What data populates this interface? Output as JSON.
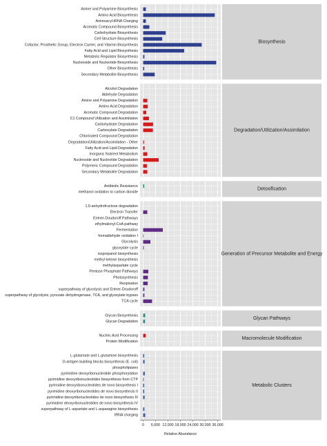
{
  "chart_data": [
    {
      "type": "bar",
      "title": "Biosynthesis",
      "color": "#2e3f8f",
      "categories": [
        "Amine and Polyamine Biosynthesis",
        "Amino Acid Biosynthesis",
        "Aminoacyl-tRNA Charging",
        "Aromatic Compound Biosynthesis",
        "Carbohydrate Biosynthesis",
        "Cell Structure Biosynthesis",
        "Cofactor, Prosthetic Group, Electron Carrier, and Vitamin Biosynthesis",
        "Fatty Acid and Lipid Biosynthesis",
        "Metabolic Regulator Biosynthesis",
        "Nucleoside and Nucleotide Biosynthesis",
        "Other Biosynthesis",
        "Secondary Metabolite Biosynthesis"
      ],
      "values": [
        1300,
        34600,
        1300,
        3000,
        10900,
        9200,
        28300,
        19800,
        600,
        35300,
        500,
        5600
      ],
      "xlim": [
        -1500,
        37500
      ],
      "xticks": [
        0,
        {
          "value": 6000,
          "label": "6,000"
        },
        {
          "value": 12000,
          "label": "12,000"
        },
        {
          "value": 18000,
          "label": "18,000"
        },
        {
          "value": 24000,
          "label": "24,000"
        },
        {
          "value": 30000,
          "label": "30,000"
        },
        {
          "value": 36000,
          "label": "36,000"
        }
      ]
    },
    {
      "type": "bar",
      "title": "Degradation/Utilization/Assimilation",
      "color": "#d7191c",
      "categories": [
        "Alcohol Degradation",
        "Aldehyde Degradation",
        "Amine and Polyamine Degradation",
        "Amino Acid Degradation",
        "Aromatic Compound Degradation",
        "C1 Compound Utilization and Assimilation",
        "Carbohydrate Degradation",
        "Carboxylate Degradation",
        "Chlorinated Compound Degradation",
        "Degradation/Utilization/Assimilation - Other",
        "Fatty Acid and Lipid Degradation",
        "Inorganic Nutrient Metabolism",
        "Nucleoside and Nucleotide Degradation",
        "Polymeric Compound Degradation",
        "Secondary Metabolite Degradation"
      ],
      "values": [
        0,
        0,
        2000,
        2200,
        1500,
        2800,
        4800,
        4700,
        0,
        400,
        700,
        2000,
        7500,
        1800,
        2000
      ],
      "xlim": [
        -1500,
        37500
      ],
      "xticks": [
        0,
        {
          "value": 6000,
          "label": "6,000"
        },
        {
          "value": 12000,
          "label": "12,000"
        },
        {
          "value": 18000,
          "label": "18,000"
        },
        {
          "value": 24000,
          "label": "24,000"
        },
        {
          "value": 30000,
          "label": "30,000"
        },
        {
          "value": 36000,
          "label": "36,000"
        }
      ]
    },
    {
      "type": "bar",
      "title": "Detoxification",
      "color": "#1a9850",
      "categories": [
        "Antibiotic Resistance",
        "methanol oxidation to carbon dioxide"
      ],
      "values": [
        500,
        0
      ],
      "xlim": [
        -1500,
        37500
      ],
      "xticks": [
        0,
        {
          "value": 6000,
          "label": "6,000"
        },
        {
          "value": 12000,
          "label": "12,000"
        },
        {
          "value": 18000,
          "label": "18,000"
        },
        {
          "value": 24000,
          "label": "24,000"
        },
        {
          "value": 30000,
          "label": "30,000"
        },
        {
          "value": 36000,
          "label": "36,000"
        }
      ]
    },
    {
      "type": "bar",
      "title": "Generation of Precursor Metabolite and Energy",
      "color": "#5e2a84",
      "categories": [
        "1,5-anhydrofructose degradation",
        "Electron Transfer",
        "Entner-Doudoroff Pathways",
        "ethylmalonyl-CoA pathway",
        "Fermentation",
        "formaldehyde oxidation I",
        "Glycolysis",
        "glyoxylate cycle",
        "isopropanol biosynthesis",
        "methyl ketone biosynthesis",
        "methylaspartate cycle",
        "Pentose Phosphate Pathways",
        "Photosynthesis",
        "Respiration",
        "superpathway of glycolysis and Entner-Doudoroff",
        "superpathway of glycolysis, pyruvate dehydrogenase, TCA, and glyoxylate bypass",
        "TCA cycle"
      ],
      "values": [
        0,
        2000,
        0,
        0,
        9500,
        200,
        3500,
        300,
        0,
        0,
        0,
        2500,
        2300,
        2200,
        600,
        600,
        4300
      ],
      "xlim": [
        -1500,
        37500
      ],
      "xticks": [
        0,
        {
          "value": 6000,
          "label": "6,000"
        },
        {
          "value": 12000,
          "label": "12,000"
        },
        {
          "value": 18000,
          "label": "18,000"
        },
        {
          "value": 24000,
          "label": "24,000"
        },
        {
          "value": 30000,
          "label": "30,000"
        },
        {
          "value": 36000,
          "label": "36,000"
        }
      ]
    },
    {
      "type": "bar",
      "title": "Glycan Pathways",
      "color": "#2b8c8c",
      "categories": [
        "Glycan Biosynthesis",
        "Glycan Degradation"
      ],
      "values": [
        1000,
        900
      ],
      "xlim": [
        -1500,
        37500
      ],
      "xticks": [
        0,
        {
          "value": 6000,
          "label": "6,000"
        },
        {
          "value": 12000,
          "label": "12,000"
        },
        {
          "value": 18000,
          "label": "18,000"
        },
        {
          "value": 24000,
          "label": "24,000"
        },
        {
          "value": 30000,
          "label": "30,000"
        },
        {
          "value": 36000,
          "label": "36,000"
        }
      ]
    },
    {
      "type": "bar",
      "title": "Macromolecule Modification",
      "color": "#d7191c",
      "categories": [
        "Nucleic Acid Processing",
        "Protein Modification"
      ],
      "values": [
        1200,
        0
      ],
      "xlim": [
        -1500,
        37500
      ],
      "xticks": [
        0,
        {
          "value": 6000,
          "label": "6,000"
        },
        {
          "value": 12000,
          "label": "12,000"
        },
        {
          "value": 18000,
          "label": "18,000"
        },
        {
          "value": 24000,
          "label": "24,000"
        },
        {
          "value": 30000,
          "label": "30,000"
        },
        {
          "value": 36000,
          "label": "36,000"
        }
      ]
    },
    {
      "type": "bar",
      "title": "Metabolic Clusters",
      "color": "#3b58a6",
      "categories": [
        "L-glutamate and L-glutamine biosynthesis",
        "O-antigen building blocks biosynthesis (E. coli)",
        "phospholipases",
        "pyrimidine deoxyribonucleotide phosphorylation",
        "pyrimidine deoxyribonucleotides biosynthesis from CTP",
        "pyrimidine deoxyribonucleotides de novo biosynthesis I",
        "pyrimidine deoxyribonucleotides de novo biosynthesis II",
        "pyrimidine deoxyribonucleotides de novo biosynthesis III",
        "pyrimidine deoxyribonucleotides de novo biosynthesis IV",
        "superpathway of L-aspartate and L-asparagine biosynthesis",
        "tRNA charging"
      ],
      "values": [
        500,
        700,
        0,
        800,
        300,
        500,
        500,
        700,
        0,
        600,
        1000
      ],
      "xlim": [
        -1500,
        37500
      ],
      "xticks": [
        0,
        {
          "value": 6000,
          "label": "6,000"
        },
        {
          "value": 12000,
          "label": "12,000"
        },
        {
          "value": 18000,
          "label": "18,000"
        },
        {
          "value": 24000,
          "label": "24,000"
        },
        {
          "value": 30000,
          "label": "30,000"
        },
        {
          "value": 36000,
          "label": "36,000"
        }
      ],
      "xlabel": "Relative Abundance"
    }
  ]
}
